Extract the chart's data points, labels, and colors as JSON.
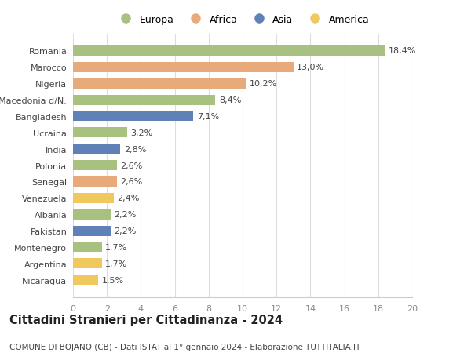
{
  "categories": [
    "Romania",
    "Marocco",
    "Nigeria",
    "Macedonia d/N.",
    "Bangladesh",
    "Ucraina",
    "India",
    "Polonia",
    "Senegal",
    "Venezuela",
    "Albania",
    "Pakistan",
    "Montenegro",
    "Argentina",
    "Nicaragua"
  ],
  "values": [
    18.4,
    13.0,
    10.2,
    8.4,
    7.1,
    3.2,
    2.8,
    2.6,
    2.6,
    2.4,
    2.2,
    2.2,
    1.7,
    1.7,
    1.5
  ],
  "labels": [
    "18,4%",
    "13,0%",
    "10,2%",
    "8,4%",
    "7,1%",
    "3,2%",
    "2,8%",
    "2,6%",
    "2,6%",
    "2,4%",
    "2,2%",
    "2,2%",
    "1,7%",
    "1,7%",
    "1,5%"
  ],
  "continents": [
    "Europa",
    "Africa",
    "Africa",
    "Europa",
    "Asia",
    "Europa",
    "Asia",
    "Europa",
    "Africa",
    "America",
    "Europa",
    "Asia",
    "Europa",
    "America",
    "America"
  ],
  "colors": {
    "Europa": "#a8c080",
    "Africa": "#e8aa7a",
    "Asia": "#6080b8",
    "America": "#f0c860"
  },
  "legend_order": [
    "Europa",
    "Africa",
    "Asia",
    "America"
  ],
  "xlim": [
    0,
    20
  ],
  "xticks": [
    0,
    2,
    4,
    6,
    8,
    10,
    12,
    14,
    16,
    18,
    20
  ],
  "title": "Cittadini Stranieri per Cittadinanza - 2024",
  "subtitle": "COMUNE DI BOJANO (CB) - Dati ISTAT al 1° gennaio 2024 - Elaborazione TUTTITALIA.IT",
  "background_color": "#ffffff",
  "grid_color": "#dddddd",
  "bar_height": 0.62,
  "label_fontsize": 8.0,
  "ytick_fontsize": 8.0,
  "xtick_fontsize": 8.0,
  "title_fontsize": 10.5,
  "subtitle_fontsize": 7.5
}
